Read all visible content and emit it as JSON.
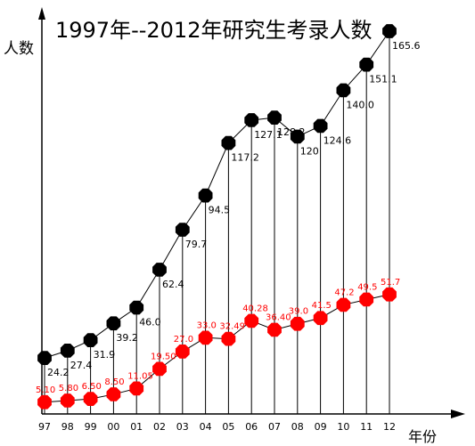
{
  "chart_data": {
    "type": "line",
    "title": "1997年--2012年研究生考录人数",
    "ylabel": "人数",
    "xlabel": "年份",
    "categories": [
      "97",
      "98",
      "99",
      "00",
      "01",
      "02",
      "03",
      "04",
      "05",
      "06",
      "07",
      "08",
      "09",
      "10",
      "11",
      "12"
    ],
    "ylim": [
      0,
      170
    ],
    "series": [
      {
        "values": [
          24.2,
          27.4,
          31.9,
          39.2,
          46.0,
          62.4,
          79.7,
          94.5,
          117.2,
          127.1,
          128.2,
          120,
          124.6,
          140.0,
          151.1,
          165.6
        ],
        "labels": [
          "24.2",
          "27.4",
          "31.9",
          "39.2",
          "46.0",
          "62.4",
          "79.7",
          "94.5",
          "117.2",
          "127.1",
          "128.2",
          "120",
          "124.6",
          "140.0",
          "151.1",
          "165.6"
        ],
        "color": "#000000"
      },
      {
        "values": [
          5.1,
          5.8,
          6.5,
          8.5,
          11.05,
          19.5,
          27.0,
          33.0,
          32.49,
          40.28,
          36.4,
          39.0,
          41.5,
          47.2,
          49.5,
          51.7
        ],
        "labels": [
          "5.10",
          "5.80",
          "6.50",
          "8.50",
          "11.05",
          "19.50",
          "27.0",
          "33.0",
          "32.49",
          "40.28",
          "36.40",
          "39.0",
          "41.5",
          "47.2",
          "49.5",
          "51.7"
        ],
        "color": "#ff0000"
      }
    ],
    "grid": false
  }
}
